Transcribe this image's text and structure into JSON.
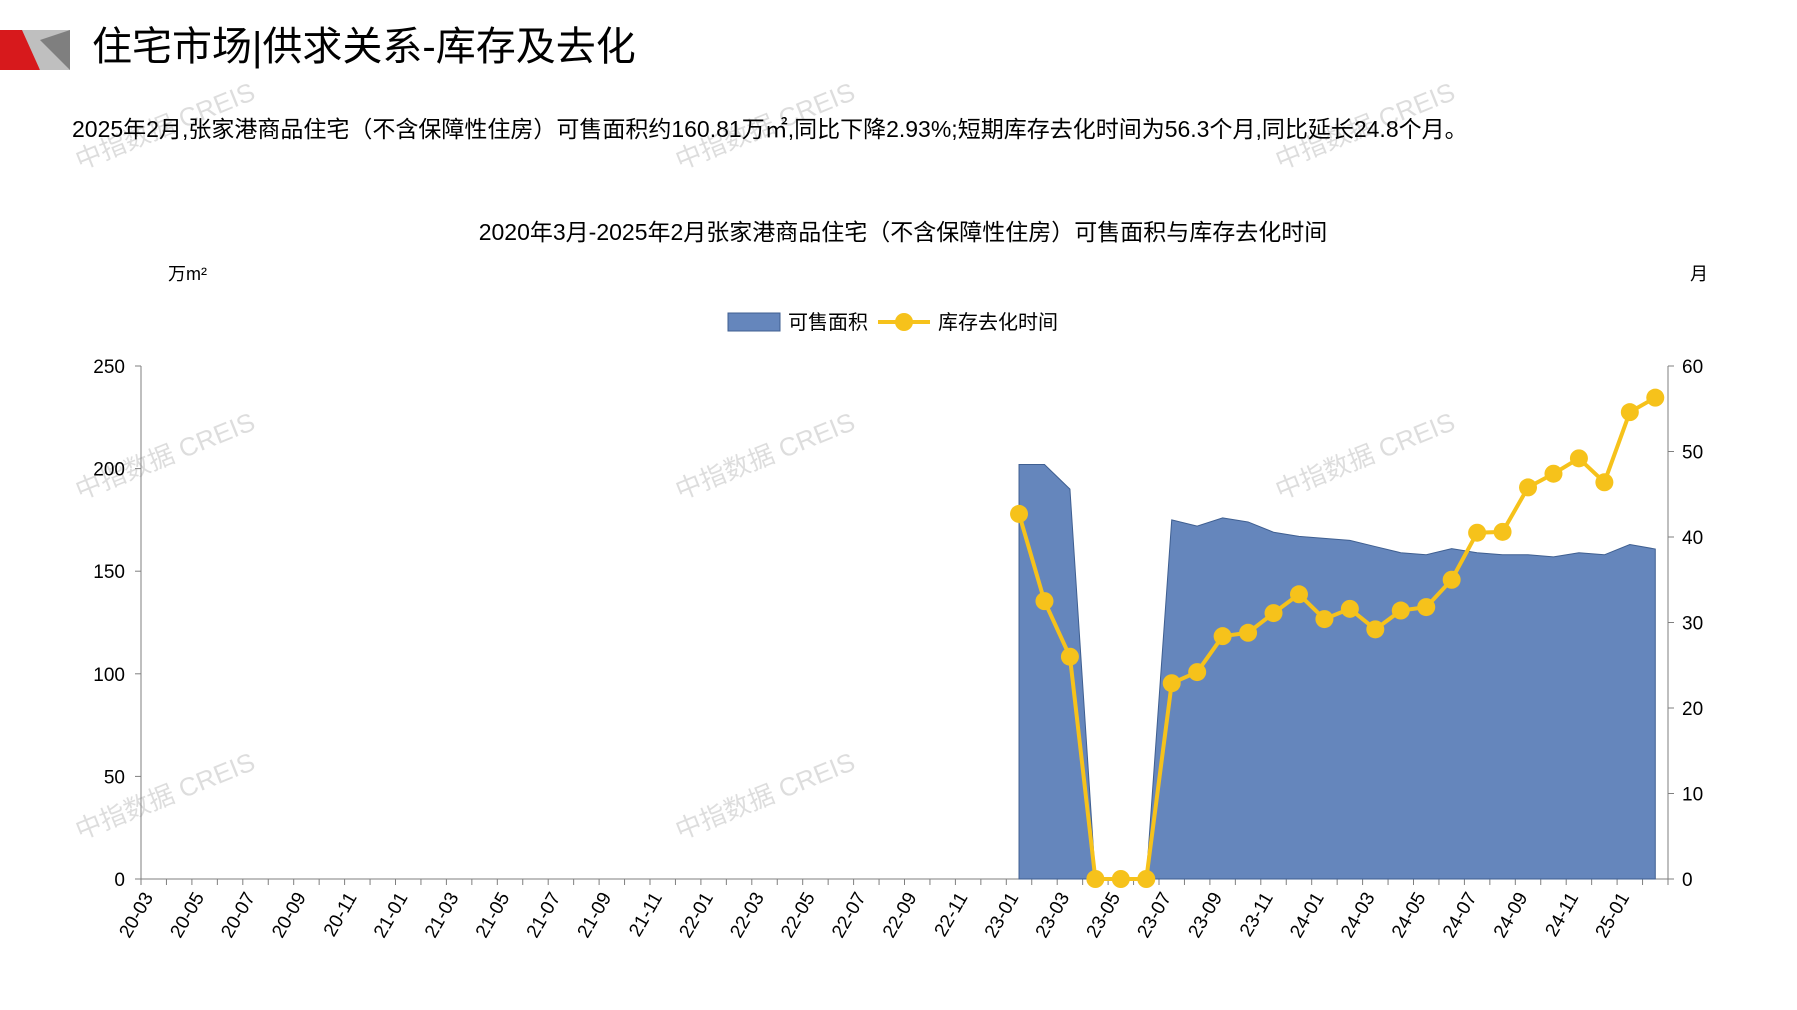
{
  "header": {
    "title": "住宅市场|供求关系-库存及去化",
    "summary": "2025年2月,张家港商品住宅（不含保障性住房）可售面积约160.81万㎡,同比下降2.93%;短期库存去化时间为56.3个月,同比延长24.8个月。",
    "watermark": "中指数据 CREIS"
  },
  "chart_data": {
    "type": "area-line",
    "title": "2020年3月-2025年2月张家港商品住宅（不含保障性住房）可售面积与库存去化时间",
    "y_unit": "万m²",
    "y2_unit": "月",
    "categories": [
      "20-03",
      null,
      "20-05",
      null,
      "20-07",
      null,
      "20-09",
      null,
      "20-11",
      null,
      "21-01",
      null,
      "21-03",
      null,
      "21-05",
      null,
      "21-07",
      null,
      "21-09",
      null,
      "21-11",
      null,
      "22-01",
      null,
      "22-03",
      null,
      "22-05",
      null,
      "22-07",
      null,
      "22-09",
      null,
      "22-11",
      null,
      "23-01",
      null,
      "23-03",
      null,
      "23-05",
      null,
      "23-07",
      null,
      "23-09",
      null,
      "23-11",
      null,
      "24-01",
      null,
      "24-03",
      null,
      "24-05",
      null,
      "24-07",
      null,
      "24-09",
      null,
      "24-11",
      null,
      "25-01",
      null
    ],
    "series": [
      {
        "name": "可售面积",
        "type": "area",
        "color": "#6586bc",
        "values": [
          null,
          null,
          null,
          null,
          null,
          null,
          null,
          null,
          null,
          null,
          null,
          null,
          null,
          null,
          null,
          null,
          null,
          null,
          null,
          null,
          null,
          null,
          null,
          null,
          null,
          null,
          null,
          null,
          null,
          null,
          null,
          null,
          null,
          null,
          202,
          202,
          190,
          0,
          0,
          0,
          175,
          172,
          176,
          174,
          169,
          167,
          166,
          165,
          162,
          159,
          158,
          161,
          159,
          158,
          158,
          157,
          159,
          158,
          163,
          160.81
        ]
      },
      {
        "name": "库存去化时间",
        "type": "line",
        "axis": "y2",
        "color": "#f6c21b",
        "values": [
          null,
          null,
          null,
          null,
          null,
          null,
          null,
          null,
          null,
          null,
          null,
          null,
          null,
          null,
          null,
          null,
          null,
          null,
          null,
          null,
          null,
          null,
          null,
          null,
          null,
          null,
          null,
          null,
          null,
          null,
          null,
          null,
          null,
          null,
          42.7,
          32.5,
          26,
          0,
          0,
          0,
          22.9,
          24.2,
          28.4,
          28.8,
          31.1,
          33.3,
          30.4,
          31.6,
          29.2,
          31.4,
          31.8,
          35,
          40.5,
          40.6,
          45.8,
          47.4,
          49.2,
          46.4,
          54.6,
          56.3
        ]
      }
    ],
    "ylim": [
      0,
      250
    ],
    "yticks": [
      0,
      50,
      100,
      150,
      200,
      250
    ],
    "y2lim": [
      0,
      60
    ],
    "y2ticks": [
      0,
      10,
      20,
      30,
      40,
      50,
      60
    ],
    "legend": "top"
  }
}
